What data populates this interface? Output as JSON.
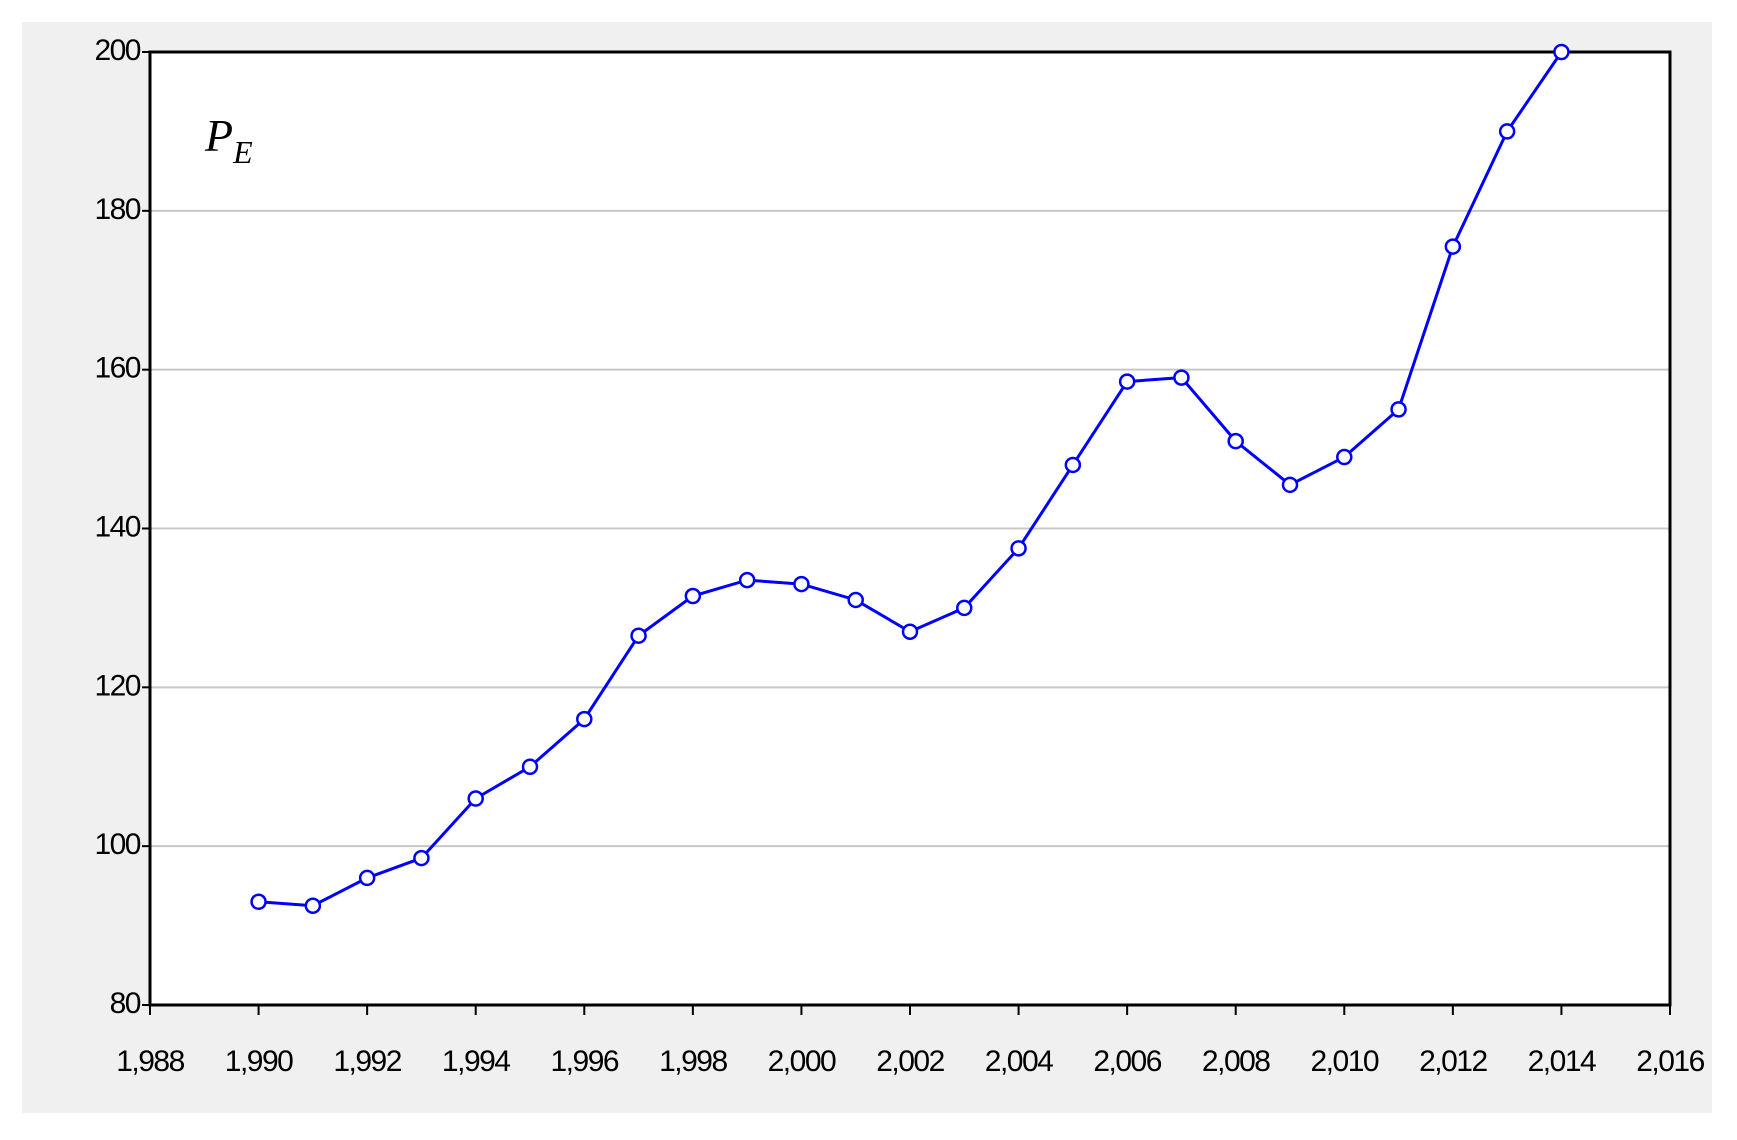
{
  "chart_data": {
    "type": "line",
    "annotation": {
      "text": "P",
      "subscript": "E"
    },
    "x": [
      1990,
      1991,
      1992,
      1993,
      1994,
      1995,
      1996,
      1997,
      1998,
      1999,
      2000,
      2001,
      2002,
      2003,
      2004,
      2005,
      2006,
      2007,
      2008,
      2009,
      2010,
      2011,
      2012,
      2013,
      2014
    ],
    "series": [
      {
        "color": "#0000ff",
        "values": [
          93,
          92.5,
          96,
          98.5,
          106,
          110,
          116,
          126.5,
          131.5,
          133.5,
          133,
          131,
          127,
          130,
          137.5,
          148,
          158.5,
          159,
          151,
          145.5,
          149,
          155,
          175.5,
          190,
          200
        ]
      }
    ],
    "xlim": [
      1988,
      2016
    ],
    "xticks": [
      {
        "value": 1988,
        "label": "1,988"
      },
      {
        "value": 1990,
        "label": "1,990"
      },
      {
        "value": 1992,
        "label": "1,992"
      },
      {
        "value": 1994,
        "label": "1,994"
      },
      {
        "value": 1996,
        "label": "1,996"
      },
      {
        "value": 1998,
        "label": "1,998"
      },
      {
        "value": 2000,
        "label": "2,000"
      },
      {
        "value": 2002,
        "label": "2,002"
      },
      {
        "value": 2004,
        "label": "2,004"
      },
      {
        "value": 2006,
        "label": "2,006"
      },
      {
        "value": 2008,
        "label": "2,008"
      },
      {
        "value": 2010,
        "label": "2,010"
      },
      {
        "value": 2012,
        "label": "2,012"
      },
      {
        "value": 2014,
        "label": "2,014"
      },
      {
        "value": 2016,
        "label": "2,016"
      }
    ],
    "ylim": [
      80,
      200
    ],
    "yticks": [
      80,
      100,
      120,
      140,
      160,
      180,
      200
    ],
    "grid": true
  }
}
